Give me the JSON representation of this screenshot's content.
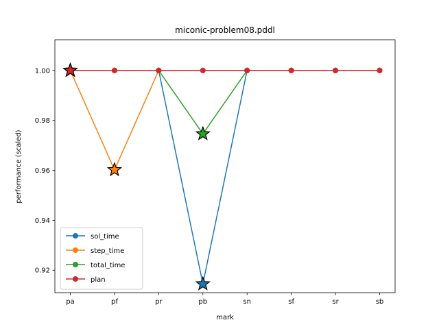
{
  "chart_data": {
    "type": "line",
    "title": "miconic-problem08.pddl",
    "xlabel": "mark",
    "ylabel": "performance (scaled)",
    "categories": [
      "pa",
      "pf",
      "pr",
      "pb",
      "sn",
      "sf",
      "sr",
      "sb"
    ],
    "ylim": [
      0.911,
      1.0123
    ],
    "yticks": [
      0.92,
      0.94,
      0.96,
      0.98,
      1.0
    ],
    "ytick_labels": [
      "0.92",
      "0.94",
      "0.96",
      "0.98",
      "1.00"
    ],
    "grid": false,
    "legend_position": "lower-left",
    "series": [
      {
        "name": "sol_time",
        "color": "#1f77b4",
        "values": [
          1.0,
          1.0,
          1.0,
          0.9145,
          1.0,
          1.0,
          1.0,
          1.0
        ],
        "star_at": [
          0,
          3
        ]
      },
      {
        "name": "step_time",
        "color": "#ff7f0e",
        "values": [
          1.0,
          0.9602,
          1.0,
          1.0,
          1.0,
          1.0,
          1.0,
          1.0
        ],
        "star_at": [
          0,
          1
        ]
      },
      {
        "name": "total_time",
        "color": "#2ca02c",
        "values": [
          1.0,
          1.0,
          1.0,
          0.9746,
          1.0,
          1.0,
          1.0,
          1.0
        ],
        "star_at": [
          0,
          3
        ]
      },
      {
        "name": "plan",
        "color": "#d62728",
        "values": [
          1.0,
          1.0,
          1.0,
          1.0,
          1.0,
          1.0,
          1.0,
          1.0
        ],
        "star_at": [
          0
        ]
      }
    ]
  }
}
